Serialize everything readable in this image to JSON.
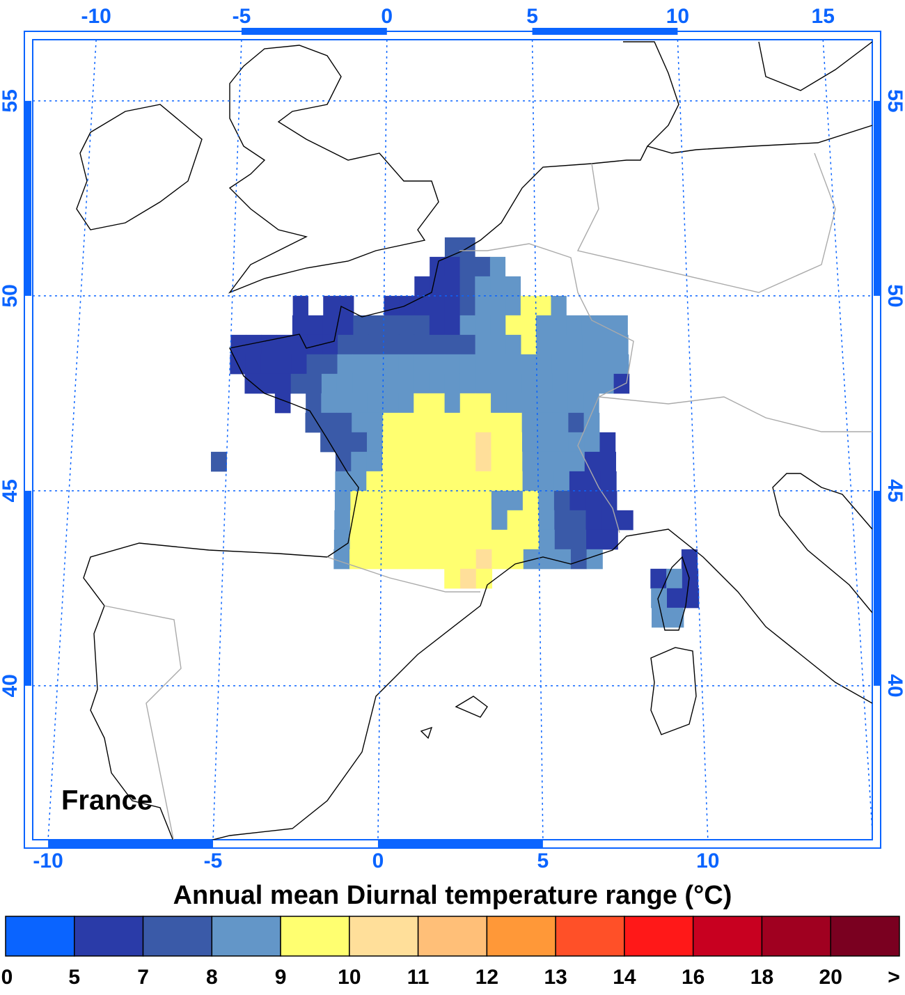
{
  "map": {
    "title": "Annual mean Diurnal temperature range (°C)",
    "region_label": "France",
    "xticks_top": [
      -10,
      -5,
      0,
      5,
      10,
      15
    ],
    "xticks_bottom": [
      -10,
      -5,
      0,
      5,
      10
    ],
    "yticks": [
      55,
      50,
      45,
      40
    ],
    "ylim": [
      36.05,
      56.57
    ],
    "grid": true,
    "cell_size": 0.5,
    "cells": [
      {
        "lat": 51.0,
        "lon": 2.0,
        "values": [
          7.5,
          7.5
        ]
      },
      {
        "lat": 50.5,
        "lon": 1.5,
        "values": [
          6,
          6,
          7.5,
          7.5,
          8.5
        ]
      },
      {
        "lat": 50.0,
        "lon": 1.0,
        "values": [
          6,
          6,
          6,
          7.5,
          8.5,
          8.5,
          8.5
        ]
      },
      {
        "lat": 49.5,
        "lon": -3.0,
        "values": [
          6,
          null,
          6,
          6,
          null,
          null,
          6,
          6,
          6,
          6,
          6,
          7.5,
          8.5,
          8.5,
          8.5,
          9.5,
          9.5,
          8.5
        ]
      },
      {
        "lat": 49.0,
        "lon": -3.0,
        "values": [
          6,
          6,
          6,
          6,
          7.5,
          7.5,
          7.5,
          7.5,
          7.5,
          6,
          6,
          8.5,
          8.5,
          8.5,
          9.5,
          9.5,
          8.5,
          8.5,
          8.5,
          8.5,
          8.5,
          8.5
        ]
      },
      {
        "lat": 48.5,
        "lon": -5.0,
        "values": [
          6,
          6,
          6,
          6,
          6,
          6,
          6,
          7.5,
          7.5,
          7.5,
          7.5,
          7.5,
          7.5,
          7.5,
          7.5,
          7.5,
          8.5,
          8.5,
          8.5,
          9.5,
          8.5,
          8.5,
          8.5,
          8.5,
          8.5,
          8.5
        ]
      },
      {
        "lat": 48.0,
        "lon": -5.0,
        "values": [
          6,
          6,
          6,
          6,
          6,
          7.5,
          7.5,
          8.5,
          8.5,
          8.5,
          8.5,
          8.5,
          8.5,
          8.5,
          8.5,
          8.5,
          8.5,
          8.5,
          8.5,
          8.5,
          8.5,
          8.5,
          8.5,
          8.5,
          8.5,
          8.5
        ]
      },
      {
        "lat": 47.5,
        "lon": -4.5,
        "values": [
          6,
          6,
          6,
          7.5,
          7.5,
          8.5,
          8.5,
          8.5,
          8.5,
          8.5,
          8.5,
          8.5,
          8.5,
          8.5,
          8.5,
          8.5,
          8.5,
          8.5,
          8.5,
          8.5,
          8.5,
          8.5,
          8.5,
          8.5,
          6
        ]
      },
      {
        "lat": 47.0,
        "lon": -3.5,
        "values": [
          6,
          null,
          7.5,
          8.5,
          8.5,
          8.5,
          8.5,
          8.5,
          8.5,
          9.5,
          9.5,
          8.5,
          9.5,
          9.5,
          8.5,
          8.5,
          8.5,
          8.5,
          8.5,
          8.5,
          8.5
        ]
      },
      {
        "lat": 46.5,
        "lon": -2.5,
        "values": [
          7.5,
          7.5,
          7.5,
          8.5,
          8.5,
          9.5,
          9.5,
          9.5,
          9.5,
          9.5,
          9.5,
          9.5,
          9.5,
          9.5,
          8.5,
          8.5,
          8.5,
          7.5,
          8.5
        ]
      },
      {
        "lat": 46.0,
        "lon": -2.0,
        "values": [
          7.5,
          7.5,
          7.5,
          8.5,
          9.5,
          9.5,
          9.5,
          9.5,
          9.5,
          9.5,
          10.5,
          9.5,
          9.5,
          8.5,
          8.5,
          8.5,
          8.5,
          8.5,
          6
        ]
      },
      {
        "lat": 45.5,
        "lon": -5.5,
        "values": [
          7.5,
          null,
          null,
          null,
          null,
          null,
          null,
          null,
          7.5,
          8.5,
          8.5,
          9.5,
          9.5,
          9.5,
          9.5,
          9.5,
          9.5,
          10.5,
          9.5,
          9.5,
          8.5,
          8.5,
          8.5,
          8.5,
          6,
          6
        ]
      },
      {
        "lat": 45.0,
        "lon": -1.5,
        "values": [
          8.5,
          8.5,
          9.5,
          9.5,
          9.5,
          9.5,
          9.5,
          9.5,
          9.5,
          9.5,
          9.5,
          9.5,
          8.5,
          8.5,
          8.5,
          6,
          6,
          6
        ]
      },
      {
        "lat": 44.5,
        "lon": -1.5,
        "values": [
          8.5,
          9.5,
          9.5,
          9.5,
          9.5,
          9.5,
          9.5,
          9.5,
          9.5,
          9.5,
          8.5,
          8.5,
          9.5,
          8.5,
          7.5,
          6,
          6,
          6
        ]
      },
      {
        "lat": 44.0,
        "lon": -1.5,
        "values": [
          8.5,
          9.5,
          9.5,
          9.5,
          9.5,
          9.5,
          9.5,
          9.5,
          9.5,
          9.5,
          8.5,
          9.5,
          9.5,
          8.5,
          7.5,
          7.5,
          6,
          6,
          6
        ]
      },
      {
        "lat": 43.5,
        "lon": -1.5,
        "values": [
          8.5,
          9.5,
          9.5,
          9.5,
          9.5,
          9.5,
          9.5,
          9.5,
          9.5,
          9.5,
          9.5,
          9.5,
          9.5,
          8.5,
          7.5,
          7.5,
          6,
          6
        ]
      },
      {
        "lat": 43.0,
        "lon": -1.5,
        "values": [
          8.5,
          9.5,
          9.5,
          9.5,
          9.5,
          9.5,
          9.5,
          9.5,
          9.5,
          10.5,
          9.5,
          9.5,
          8.5,
          8.5,
          8.5,
          7.5,
          8.5,
          null,
          null,
          null,
          null,
          null,
          6
        ]
      },
      {
        "lat": 42.5,
        "lon": 2.0,
        "values": [
          9.5,
          10.5,
          9.5,
          null,
          null,
          null,
          null,
          null,
          null,
          null,
          null,
          null,
          null,
          6,
          8.5,
          6
        ]
      },
      {
        "lat": 42.0,
        "lon": 8.5,
        "values": [
          8.5,
          6,
          6
        ]
      },
      {
        "lat": 41.5,
        "lon": 8.5,
        "values": [
          8.5,
          8.5
        ]
      }
    ],
    "colorbar": {
      "bounds": [
        0,
        5,
        7,
        8,
        9,
        10,
        11,
        12,
        13,
        14,
        16,
        18,
        20
      ],
      "overflow_label": ">",
      "colors": [
        "#0a64ff",
        "#2a3ba8",
        "#3a5aa8",
        "#6396c8",
        "#ffff70",
        "#ffdf9a",
        "#ffbf78",
        "#ff9838",
        "#ff5028",
        "#ff1818",
        "#c80020",
        "#a00020",
        "#7a0020"
      ]
    }
  }
}
